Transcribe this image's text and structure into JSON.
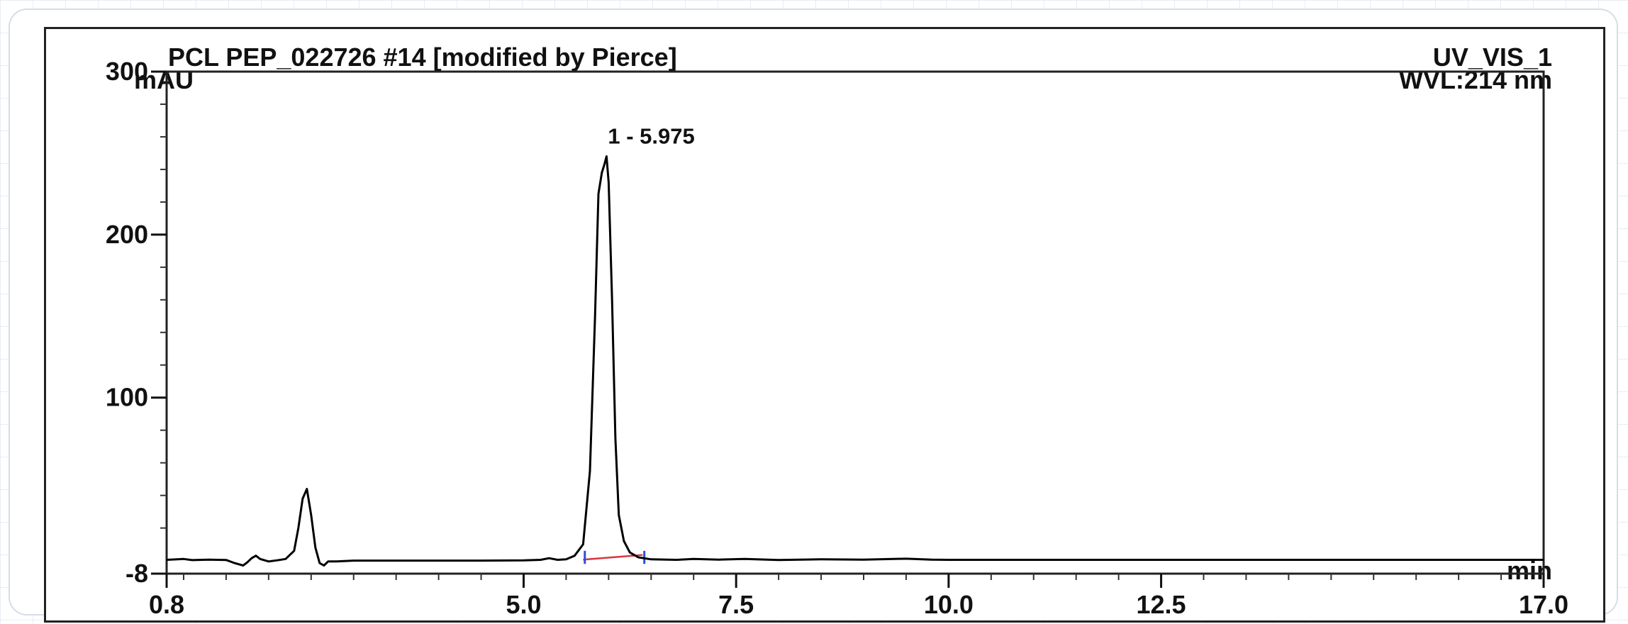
{
  "chart_data": {
    "type": "line",
    "title": "PCL PEP_022726 #14 [modified by Pierce]",
    "channel": "UV_VIS_1",
    "wavelength": "WVL:214 nm",
    "ylabel": "mAU",
    "xlabel": "min",
    "xlim": [
      0.8,
      17.0
    ],
    "ylim": [
      -8,
      300
    ],
    "x_ticks": [
      {
        "value": 0.8,
        "label": "0.8"
      },
      {
        "value": 5.0,
        "label": "5.0"
      },
      {
        "value": 7.5,
        "label": "7.5"
      },
      {
        "value": 10.0,
        "label": "10.0"
      },
      {
        "value": 12.5,
        "label": "12.5"
      },
      {
        "value": 17.0,
        "label": "17.0"
      }
    ],
    "y_ticks": [
      {
        "value": -8,
        "label": "-8"
      },
      {
        "value": 100,
        "label": "100"
      },
      {
        "value": 200,
        "label": "200"
      },
      {
        "value": 300,
        "label": "300"
      }
    ],
    "grid": false,
    "peaks": [
      {
        "number": 1,
        "retention_time": 5.975,
        "height": 248,
        "label": "1 - 5.975"
      }
    ],
    "series": [
      {
        "x": [
          0.8,
          1.0,
          1.1,
          1.3,
          1.5,
          1.6,
          1.7,
          1.75,
          1.8,
          1.85,
          1.9,
          2.0,
          2.1,
          2.2,
          2.3,
          2.35,
          2.4,
          2.45,
          2.5,
          2.55,
          2.6,
          2.65,
          2.7,
          2.8,
          3.0,
          3.5,
          4.0,
          4.5,
          5.0,
          5.2,
          5.3,
          5.4,
          5.5,
          5.6,
          5.7,
          5.78,
          5.84,
          5.88,
          5.92,
          5.95,
          5.975,
          6.0,
          6.04,
          6.08,
          6.12,
          6.18,
          6.25,
          6.35,
          6.5,
          6.8,
          7.0,
          7.3,
          7.6,
          8.0,
          8.5,
          9.0,
          9.5,
          9.8,
          10.0,
          11.0,
          12.0,
          13.0,
          14.0,
          15.0,
          16.0,
          17.0
        ],
        "y": [
          0.5,
          1.0,
          0.3,
          0.6,
          0.4,
          -1.5,
          -3.0,
          -1.0,
          1.5,
          3.0,
          1.0,
          -0.5,
          0.2,
          1.0,
          6.0,
          20.0,
          38.0,
          44.0,
          28.0,
          8.0,
          -1.5,
          -3.0,
          -0.5,
          -0.5,
          0.0,
          0.0,
          0.0,
          0.0,
          0.2,
          0.5,
          1.5,
          0.5,
          0.8,
          3.0,
          10.0,
          55.0,
          150.0,
          225.0,
          238.0,
          243.0,
          248.0,
          232.0,
          160.0,
          75.0,
          28.0,
          12.0,
          5.0,
          2.0,
          0.8,
          0.5,
          1.0,
          0.6,
          1.0,
          0.4,
          0.8,
          0.6,
          1.2,
          0.6,
          0.5,
          0.5,
          0.5,
          0.5,
          0.5,
          0.5,
          0.5,
          0.5
        ]
      }
    ],
    "baseline": {
      "x": [
        5.7,
        6.4
      ],
      "y": [
        0.6,
        3.5
      ],
      "color": "#d9363e"
    },
    "integration_markers": {
      "x": [
        5.72,
        6.42
      ],
      "color": "#2b4fd8"
    },
    "line_color": "#000000"
  }
}
